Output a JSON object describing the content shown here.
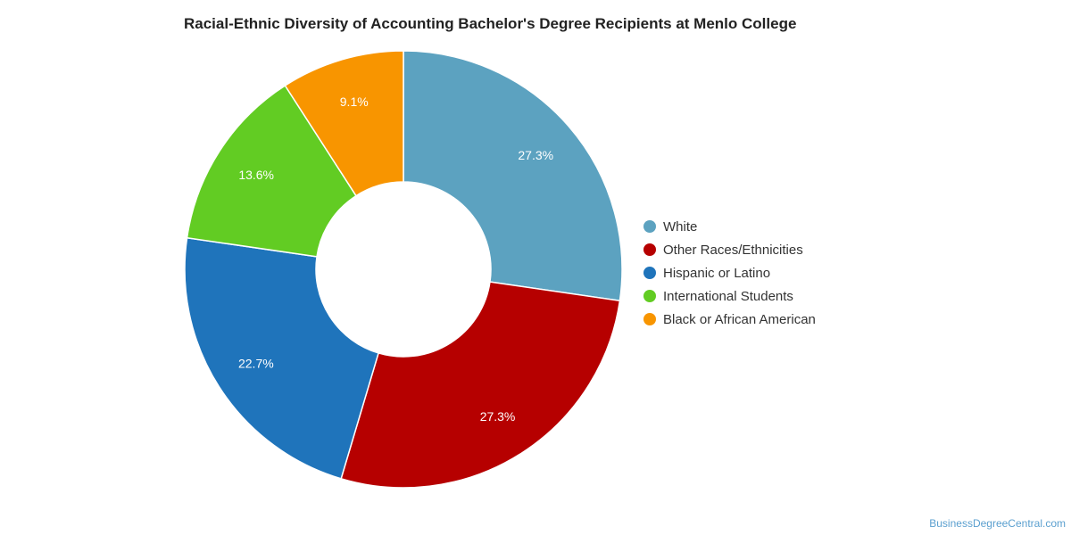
{
  "chart_data": {
    "type": "pie",
    "title": "Racial-Ethnic Diversity of Accounting Bachelor's Degree Recipients at Menlo College",
    "donut": true,
    "legend_position": "right",
    "slices": [
      {
        "label": "White",
        "value": 27.3,
        "display": "27.3%",
        "color": "#5ca2c0"
      },
      {
        "label": "Other Races/Ethnicities",
        "value": 27.3,
        "display": "27.3%",
        "color": "#b60000"
      },
      {
        "label": "Hispanic or Latino",
        "value": 22.7,
        "display": "22.7%",
        "color": "#1f74bb"
      },
      {
        "label": "International Students",
        "value": 13.6,
        "display": "13.6%",
        "color": "#62cc23"
      },
      {
        "label": "Black or African American",
        "value": 9.1,
        "display": "9.1%",
        "color": "#f89500"
      }
    ]
  },
  "watermark": "BusinessDegreeCentral.com"
}
